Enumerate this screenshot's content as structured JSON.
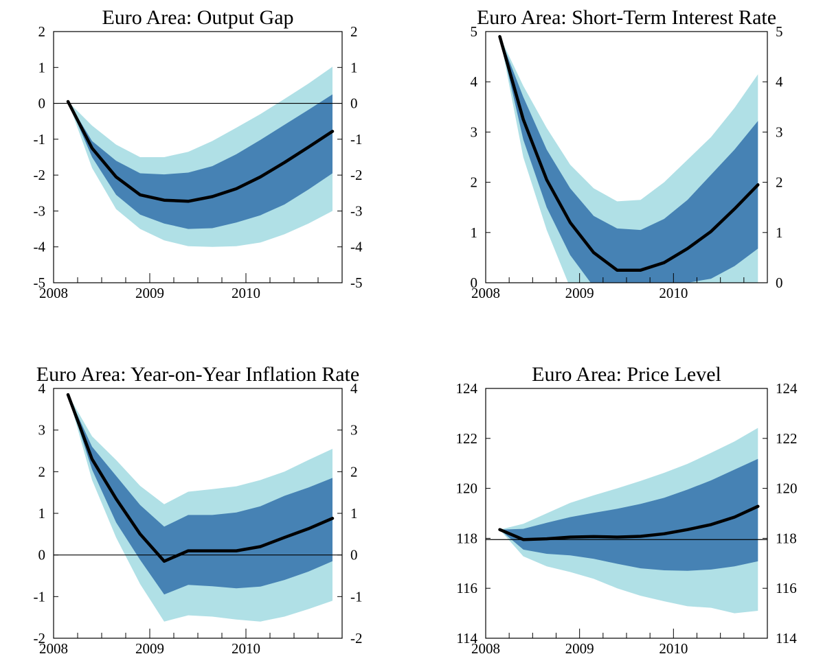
{
  "colors": {
    "outer_band": "#b0e0e6",
    "inner_band": "#4682b4",
    "median_line": "#000000",
    "reference_line": "#000000"
  },
  "chart_data": [
    {
      "type": "area",
      "title": "Euro Area: Output Gap",
      "xlabel": "",
      "ylabel": "",
      "xlim": [
        2008.0,
        2011.0
      ],
      "ylim": [
        -5,
        2
      ],
      "yticks": [
        "-5",
        "-4",
        "-3",
        "-2",
        "-1",
        "0",
        "1",
        "2"
      ],
      "xticks": [
        "2008",
        "2009",
        "2010"
      ],
      "reference_line": 0,
      "grid": false,
      "x": [
        2008.15,
        2008.4,
        2008.65,
        2008.9,
        2009.15,
        2009.4,
        2009.65,
        2009.9,
        2010.15,
        2010.4,
        2010.65,
        2010.9
      ],
      "median": [
        0.05,
        -1.25,
        -2.05,
        -2.55,
        -2.7,
        -2.73,
        -2.6,
        -2.38,
        -2.05,
        -1.65,
        -1.22,
        -0.78
      ],
      "inner_band": {
        "upper": [
          0.05,
          -1.05,
          -1.6,
          -1.95,
          -1.98,
          -1.93,
          -1.75,
          -1.42,
          -1.02,
          -0.6,
          -0.18,
          0.25
        ],
        "lower": [
          0.05,
          -1.5,
          -2.55,
          -3.1,
          -3.35,
          -3.5,
          -3.48,
          -3.32,
          -3.12,
          -2.82,
          -2.4,
          -1.95
        ]
      },
      "outer_band": {
        "upper": [
          0.05,
          -0.62,
          -1.15,
          -1.5,
          -1.5,
          -1.35,
          -1.05,
          -0.68,
          -0.3,
          0.12,
          0.55,
          1.02
        ],
        "lower": [
          0.05,
          -1.8,
          -2.95,
          -3.5,
          -3.82,
          -3.98,
          -4.0,
          -3.98,
          -3.88,
          -3.65,
          -3.35,
          -3.0
        ]
      }
    },
    {
      "type": "area",
      "title": "Euro Area: Short-Term Interest Rate",
      "xlabel": "",
      "ylabel": "",
      "xlim": [
        2008.0,
        2011.0
      ],
      "ylim": [
        0,
        5
      ],
      "yticks": [
        "0",
        "1",
        "2",
        "3",
        "4",
        "5"
      ],
      "xticks": [
        "2008",
        "2009",
        "2010"
      ],
      "reference_line": null,
      "grid": false,
      "x": [
        2008.15,
        2008.4,
        2008.65,
        2008.9,
        2009.15,
        2009.4,
        2009.65,
        2009.9,
        2010.15,
        2010.4,
        2010.65,
        2010.9
      ],
      "median": [
        4.9,
        3.25,
        2.05,
        1.2,
        0.6,
        0.25,
        0.25,
        0.4,
        0.68,
        1.02,
        1.47,
        1.95
      ],
      "inner_band": {
        "upper": [
          4.9,
          3.7,
          2.65,
          1.88,
          1.33,
          1.08,
          1.05,
          1.27,
          1.65,
          2.15,
          2.65,
          3.22
        ],
        "lower": [
          4.9,
          2.85,
          1.5,
          0.55,
          -0.08,
          -0.32,
          -0.38,
          -0.18,
          0.0,
          0.08,
          0.33,
          0.68
        ]
      },
      "outer_band": {
        "upper": [
          4.9,
          3.92,
          3.08,
          2.35,
          1.88,
          1.62,
          1.65,
          2.0,
          2.45,
          2.9,
          3.48,
          4.15
        ],
        "lower": [
          4.9,
          2.5,
          1.05,
          -0.1,
          -0.8,
          -1.2,
          -1.3,
          -1.2,
          -1.0,
          -0.85,
          -0.6,
          -0.3
        ]
      }
    },
    {
      "type": "area",
      "title": "Euro Area: Year-on-Year Inflation Rate",
      "xlabel": "",
      "ylabel": "",
      "xlim": [
        2008.0,
        2011.0
      ],
      "ylim": [
        -2,
        4
      ],
      "yticks": [
        "-2",
        "-1",
        "0",
        "1",
        "2",
        "3",
        "4"
      ],
      "xticks": [
        "2008",
        "2009",
        "2010"
      ],
      "reference_line": 0,
      "grid": false,
      "x": [
        2008.15,
        2008.4,
        2008.65,
        2008.9,
        2009.15,
        2009.4,
        2009.65,
        2009.9,
        2010.15,
        2010.4,
        2010.65,
        2010.9
      ],
      "median": [
        3.85,
        2.3,
        1.35,
        0.5,
        -0.15,
        0.1,
        0.1,
        0.1,
        0.2,
        0.42,
        0.63,
        0.88
      ],
      "inner_band": {
        "upper": [
          3.85,
          2.6,
          1.9,
          1.2,
          0.68,
          0.96,
          0.96,
          1.02,
          1.17,
          1.42,
          1.62,
          1.85
        ],
        "lower": [
          3.85,
          2.05,
          0.78,
          -0.12,
          -0.95,
          -0.72,
          -0.75,
          -0.8,
          -0.76,
          -0.6,
          -0.4,
          -0.15
        ]
      },
      "outer_band": {
        "upper": [
          3.85,
          2.85,
          2.28,
          1.66,
          1.22,
          1.52,
          1.58,
          1.65,
          1.8,
          2.0,
          2.28,
          2.55
        ],
        "lower": [
          3.85,
          1.8,
          0.42,
          -0.7,
          -1.6,
          -1.45,
          -1.48,
          -1.55,
          -1.6,
          -1.48,
          -1.3,
          -1.1
        ]
      }
    },
    {
      "type": "area",
      "title": "Euro Area: Price Level",
      "xlabel": "",
      "ylabel": "",
      "xlim": [
        2008.0,
        2011.0
      ],
      "ylim": [
        114,
        124
      ],
      "yticks": [
        "114",
        "116",
        "118",
        "120",
        "122",
        "124"
      ],
      "xticks": [
        "2008",
        "2009",
        "2010"
      ],
      "reference_line": 117.95,
      "grid": false,
      "x": [
        2008.15,
        2008.4,
        2008.65,
        2008.9,
        2009.15,
        2009.4,
        2009.65,
        2009.9,
        2010.15,
        2010.4,
        2010.65,
        2010.9
      ],
      "median": [
        118.35,
        117.95,
        117.98,
        118.05,
        118.07,
        118.05,
        118.08,
        118.18,
        118.35,
        118.55,
        118.85,
        119.28
      ],
      "inner_band": {
        "upper": [
          118.35,
          118.38,
          118.62,
          118.85,
          119.02,
          119.18,
          119.38,
          119.62,
          119.95,
          120.32,
          120.75,
          121.18
        ],
        "lower": [
          118.35,
          117.55,
          117.38,
          117.32,
          117.18,
          116.98,
          116.8,
          116.72,
          116.7,
          116.75,
          116.88,
          117.08
        ]
      },
      "outer_band": {
        "upper": [
          118.35,
          118.58,
          119.0,
          119.42,
          119.72,
          120.0,
          120.3,
          120.62,
          120.98,
          121.42,
          121.88,
          122.42
        ],
        "lower": [
          118.35,
          117.28,
          116.88,
          116.65,
          116.38,
          116.0,
          115.7,
          115.48,
          115.28,
          115.22,
          115.0,
          115.1
        ]
      }
    }
  ]
}
